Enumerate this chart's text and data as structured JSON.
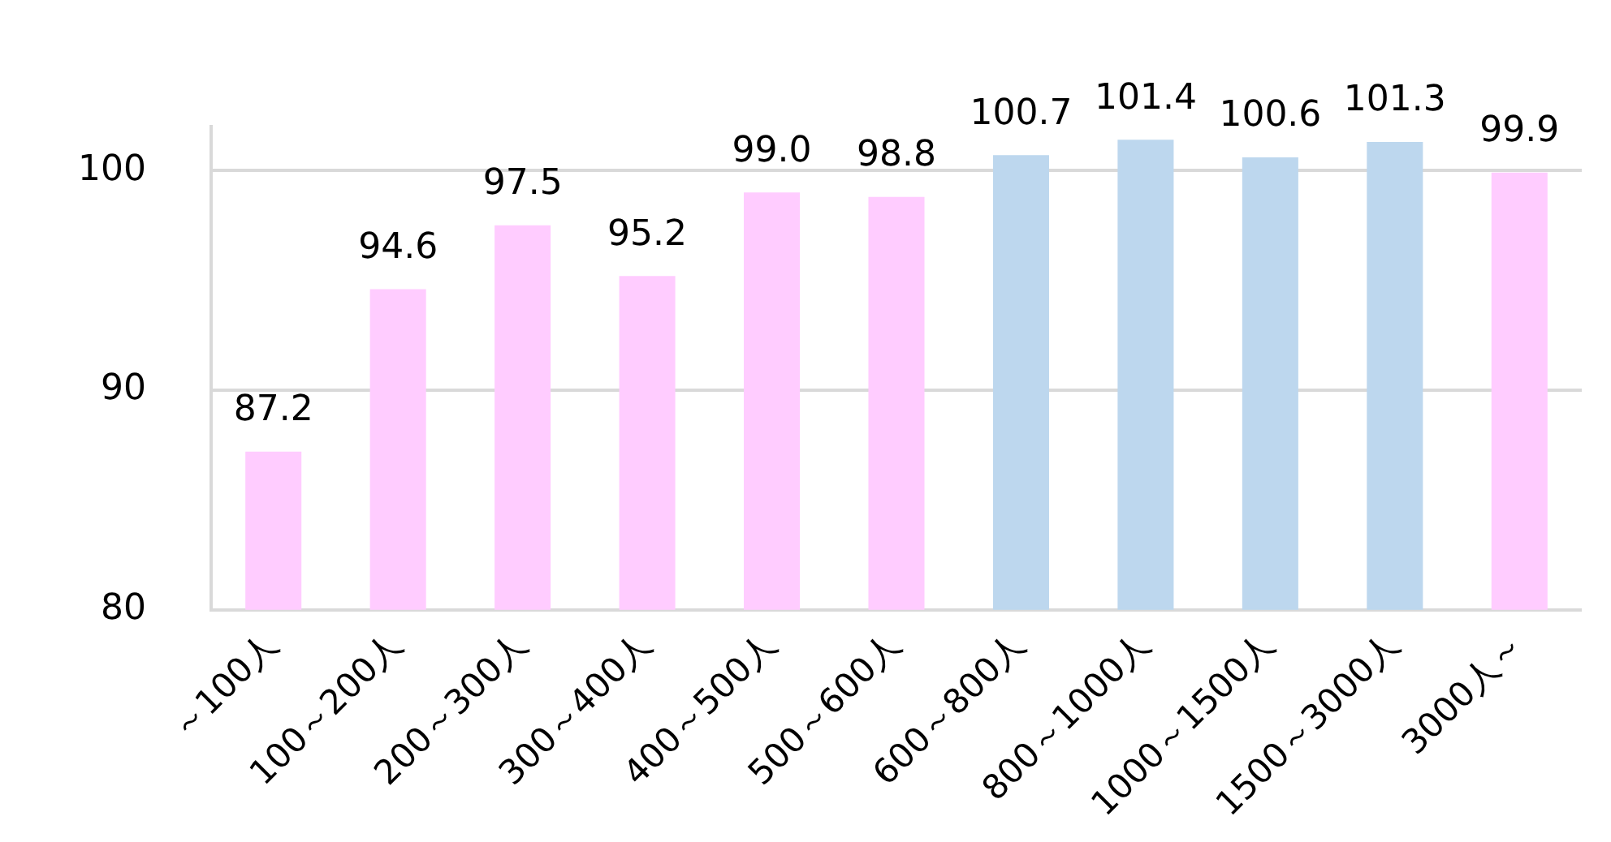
{
  "chart_data": {
    "type": "bar",
    "categories": [
      "～100人",
      "100～200人",
      "200～300人",
      "300～400人",
      "400～500人",
      "500～600人",
      "600～800人",
      "800～1000人",
      "1000～1500人",
      "1500～3000人",
      "3000人～"
    ],
    "values": [
      87.2,
      94.6,
      97.5,
      95.2,
      99.0,
      98.8,
      100.7,
      101.4,
      100.6,
      101.3,
      99.9
    ],
    "value_labels": [
      "87.2",
      "94.6",
      "97.5",
      "95.2",
      "99.0",
      "98.8",
      "100.7",
      "101.4",
      "100.6",
      "101.3",
      "99.9"
    ],
    "colors": [
      "#ffccff",
      "#ffccff",
      "#ffccff",
      "#ffccff",
      "#ffccff",
      "#ffccff",
      "#bdd7ee",
      "#bdd7ee",
      "#bdd7ee",
      "#bdd7ee",
      "#ffccff"
    ],
    "ylim": [
      80,
      102
    ],
    "yticks": [
      80,
      90,
      100
    ],
    "grid": "y",
    "legend": false
  }
}
